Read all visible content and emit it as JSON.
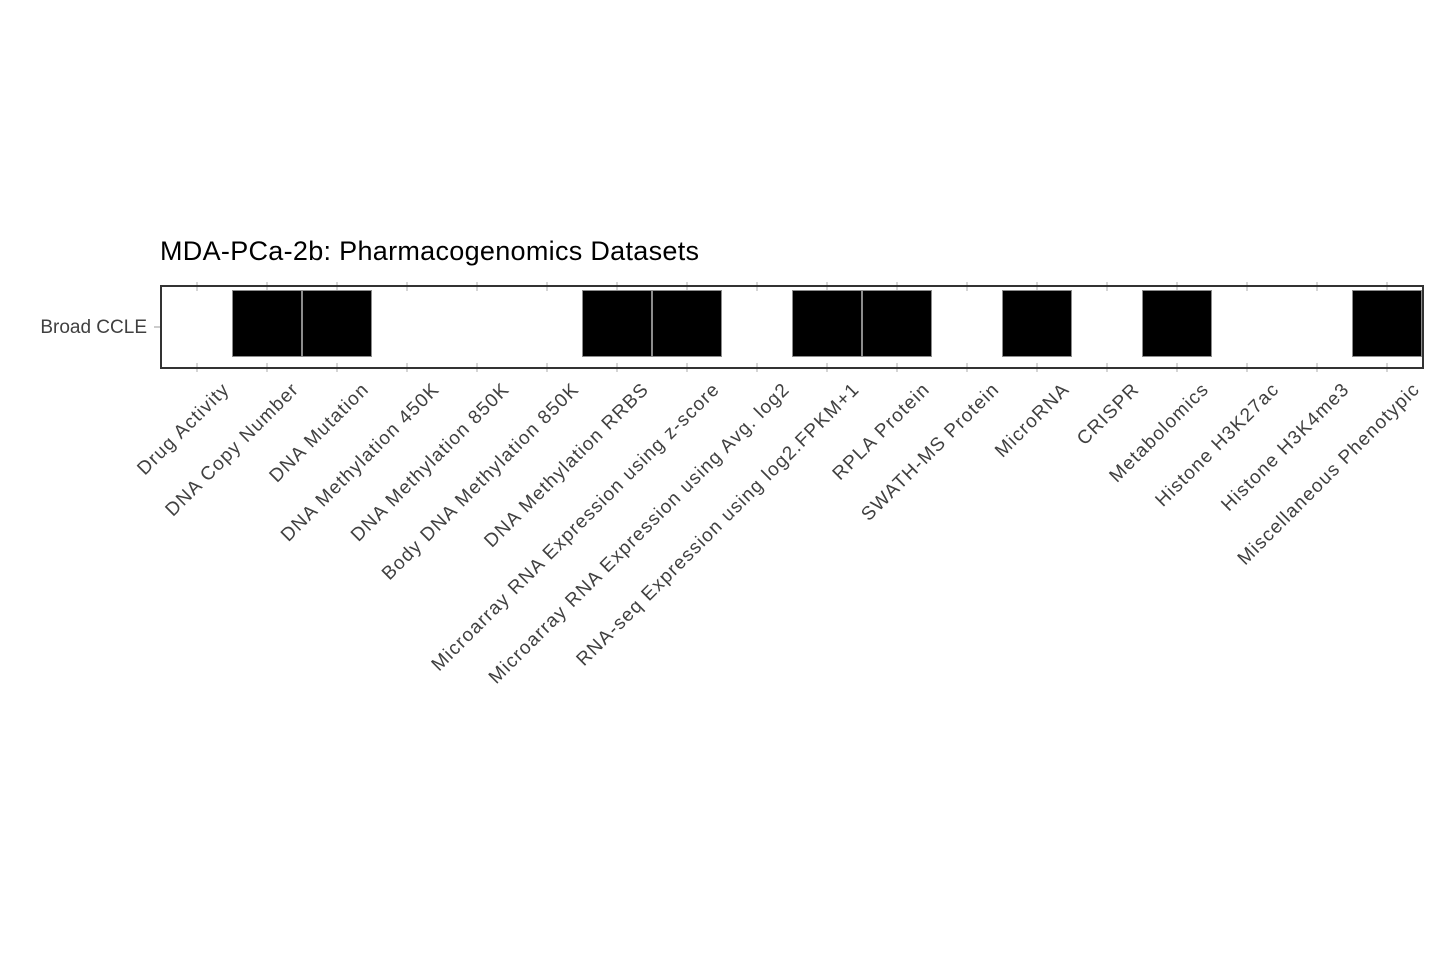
{
  "title": "MDA-PCa-2b: Pharmacogenomics Datasets",
  "chart_data": {
    "type": "heatmap",
    "title": "MDA-PCa-2b: Pharmacogenomics Datasets",
    "rows": [
      "Broad CCLE"
    ],
    "categories": [
      "Drug Activity",
      "DNA Copy Number",
      "DNA Mutation",
      "DNA Methylation 450K",
      "DNA Methylation 850K",
      "Body DNA Methylation 850K",
      "DNA Methylation RRBS",
      "Microarray RNA Expression using z-score",
      "Microarray RNA Expression using Avg. log2",
      "RNA-seq Expression using log2.FPKM+1",
      "RPLA Protein",
      "SWATH-MS Protein",
      "MicroRNA",
      "CRISPR",
      "Metabolomics",
      "Histone H3K27ac",
      "Histone H3K4me3",
      "Miscellaneous Phenotypic"
    ],
    "series": [
      {
        "name": "Broad CCLE",
        "values": [
          0,
          1,
          1,
          0,
          0,
          0,
          1,
          1,
          0,
          1,
          1,
          0,
          1,
          0,
          1,
          0,
          0,
          1
        ]
      }
    ],
    "colors": {
      "available": "#000000",
      "unavailable": "#ffffff",
      "cell_border": "#8c8c8c",
      "panel_border": "#333333",
      "axis_tick": "#d6d6d6",
      "label_text": "#404040",
      "title_text": "#000000"
    },
    "legend_position": "none",
    "x_tick_angle": 45,
    "grid": false
  }
}
